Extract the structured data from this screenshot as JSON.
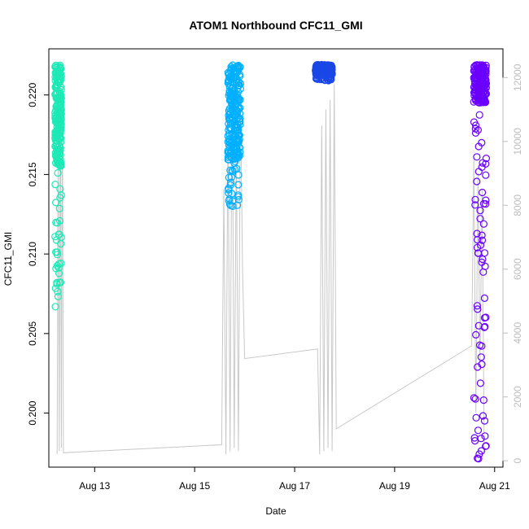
{
  "chart_data": {
    "type": "scatter",
    "title": "ATOM1 Northbound CFC11_GMI",
    "xlabel": "Date",
    "ylabel": "CFC11_GMI",
    "xlim": [
      "2016-08-12 02:00",
      "2016-08-21 04:00"
    ],
    "ylim": [
      0.1966,
      0.2229
    ],
    "y2lim": [
      -200,
      12900
    ],
    "x_ticks": [
      {
        "date": "2016-08-13",
        "label": "Aug 13"
      },
      {
        "date": "2016-08-15",
        "label": "Aug 15"
      },
      {
        "date": "2016-08-17",
        "label": "Aug 17"
      },
      {
        "date": "2016-08-19",
        "label": "Aug 19"
      },
      {
        "date": "2016-08-21",
        "label": "Aug 21"
      }
    ],
    "y_ticks": [
      0.2,
      0.205,
      0.21,
      0.215,
      0.22
    ],
    "y_tick_labels": [
      "0.200",
      "0.205",
      "0.210",
      "0.215",
      "0.220"
    ],
    "y2_ticks": [
      0,
      2000,
      4000,
      6000,
      8000,
      10000,
      12000
    ],
    "y2_tick_labels": [
      "0",
      "2000",
      "4000",
      "6000",
      "8000",
      "10000",
      "12000"
    ],
    "grid": false,
    "colors": {
      "altitude_line": "#c8c8c8",
      "axis": "#000000",
      "right_axis": "#bdbdbd"
    },
    "series": [
      {
        "color": "#1de9b6",
        "x_range": [
          "2016-08-12 05:00",
          "2016-08-12 08:00"
        ],
        "y_range": [
          0.2065,
          0.2219
        ],
        "dense_band": [
          0.2155,
          0.2219
        ]
      },
      {
        "color": "#00b0ff",
        "x_range": [
          "2016-08-15 16:00",
          "2016-08-15 22:00"
        ],
        "y_range": [
          0.2127,
          0.2219
        ],
        "dense_band": [
          0.216,
          0.2219
        ]
      },
      {
        "color": "#1a47e6",
        "x_range": [
          "2016-08-17 10:00",
          "2016-08-17 18:00"
        ],
        "y_range": [
          0.2209,
          0.2219
        ],
        "dense_band": [
          0.2213,
          0.2219
        ]
      },
      {
        "color": "#6a00ff",
        "x_range": [
          "2016-08-20 14:00",
          "2016-08-20 20:00"
        ],
        "y_range": [
          0.197,
          0.2219
        ],
        "dense_band": [
          0.2195,
          0.2219
        ]
      }
    ],
    "altitude_trace": [
      {
        "t": "2016-08-12 06:00",
        "alt": 200
      },
      {
        "t": "2016-08-12 06:30",
        "alt": 9800
      },
      {
        "t": "2016-08-12 07:00",
        "alt": 300
      },
      {
        "t": "2016-08-12 07:30",
        "alt": 12500
      },
      {
        "t": "2016-08-12 08:00",
        "alt": 400
      },
      {
        "t": "2016-08-12 08:30",
        "alt": 12000
      },
      {
        "t": "2016-08-12 09:00",
        "alt": 250
      },
      {
        "t": "2016-08-15 13:00",
        "alt": 500
      },
      {
        "t": "2016-08-15 14:00",
        "alt": 8500
      },
      {
        "t": "2016-08-15 15:00",
        "alt": 200
      },
      {
        "t": "2016-08-15 16:00",
        "alt": 10500
      },
      {
        "t": "2016-08-15 17:00",
        "alt": 300
      },
      {
        "t": "2016-08-15 18:00",
        "alt": 12500
      },
      {
        "t": "2016-08-15 19:00",
        "alt": 400
      },
      {
        "t": "2016-08-15 20:00",
        "alt": 10000
      },
      {
        "t": "2016-08-15 21:00",
        "alt": 300
      },
      {
        "t": "2016-08-15 22:00",
        "alt": 11500
      },
      {
        "t": "2016-08-15 23:00",
        "alt": 6000
      },
      {
        "t": "2016-08-16 00:00",
        "alt": 3200
      },
      {
        "t": "2016-08-17 11:00",
        "alt": 3500
      },
      {
        "t": "2016-08-17 12:00",
        "alt": 200
      },
      {
        "t": "2016-08-17 13:00",
        "alt": 10500
      },
      {
        "t": "2016-08-17 14:00",
        "alt": 300
      },
      {
        "t": "2016-08-17 15:00",
        "alt": 11000
      },
      {
        "t": "2016-08-17 16:00",
        "alt": 400
      },
      {
        "t": "2016-08-17 17:00",
        "alt": 11300
      },
      {
        "t": "2016-08-17 18:00",
        "alt": 300
      },
      {
        "t": "2016-08-17 19:00",
        "alt": 11800
      },
      {
        "t": "2016-08-17 20:00",
        "alt": 1000
      },
      {
        "t": "2016-08-20 13:00",
        "alt": 3600
      },
      {
        "t": "2016-08-20 14:00",
        "alt": 9500
      },
      {
        "t": "2016-08-20 15:00",
        "alt": 1500
      },
      {
        "t": "2016-08-20 16:00",
        "alt": 9000
      },
      {
        "t": "2016-08-20 17:00",
        "alt": 3000
      },
      {
        "t": "2016-08-20 18:00",
        "alt": 8500
      },
      {
        "t": "2016-08-20 19:00",
        "alt": 200
      }
    ]
  }
}
